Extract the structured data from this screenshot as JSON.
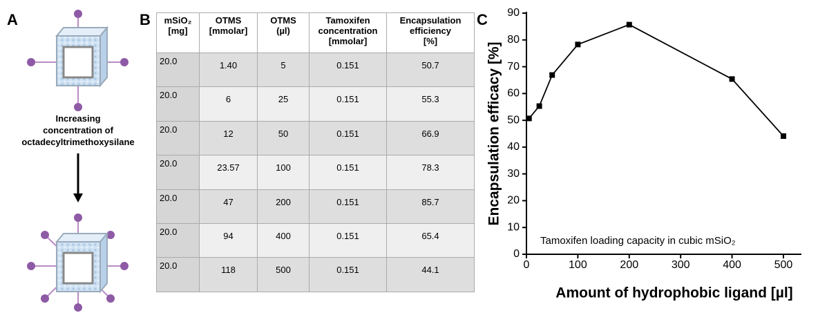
{
  "panel_a": {
    "label": "A",
    "caption": "Increasing concentration of octadecyltrimethoxysilane"
  },
  "panel_b": {
    "label": "B",
    "table": {
      "header": [
        "mSiO₂\n[mg]",
        "OTMS\n[mmolar]",
        "OTMS\n(µl)",
        "Tamoxifen\nconcentration\n[mmolar]",
        "Encapsulation\nefficiency\n[%]"
      ],
      "rows": [
        [
          "20.0",
          "1.40",
          "5",
          "0.151",
          "50.7"
        ],
        [
          "20.0",
          "6",
          "25",
          "0.151",
          "55.3"
        ],
        [
          "20.0",
          "12",
          "50",
          "0.151",
          "66.9"
        ],
        [
          "20.0",
          "23.57",
          "100",
          "0.151",
          "78.3"
        ],
        [
          "20.0",
          "47",
          "200",
          "0.151",
          "85.7"
        ],
        [
          "20.0",
          "94",
          "400",
          "0.151",
          "65.4"
        ],
        [
          "20.0",
          "118",
          "500",
          "0.151",
          "44.1"
        ]
      ]
    }
  },
  "panel_c_label": "C",
  "chart_data": {
    "type": "line",
    "x_label": "Amount of hydrophobic ligand [µl]",
    "y_label": "Encapsulation efficacy [%]",
    "annotation": "Tamoxifen loading capacity in cubic mSiO₂",
    "x": [
      5,
      25,
      50,
      100,
      200,
      400,
      500
    ],
    "values": [
      50.7,
      55.3,
      66.9,
      78.3,
      85.7,
      65.4,
      44.1
    ],
    "color": "#000000",
    "xlim": [
      0,
      535
    ],
    "xticks": [
      0,
      100,
      200,
      300,
      400,
      500
    ],
    "ylim": [
      0,
      90
    ],
    "yticks": [
      0,
      10,
      20,
      30,
      40,
      50,
      60,
      70,
      80,
      90
    ]
  }
}
